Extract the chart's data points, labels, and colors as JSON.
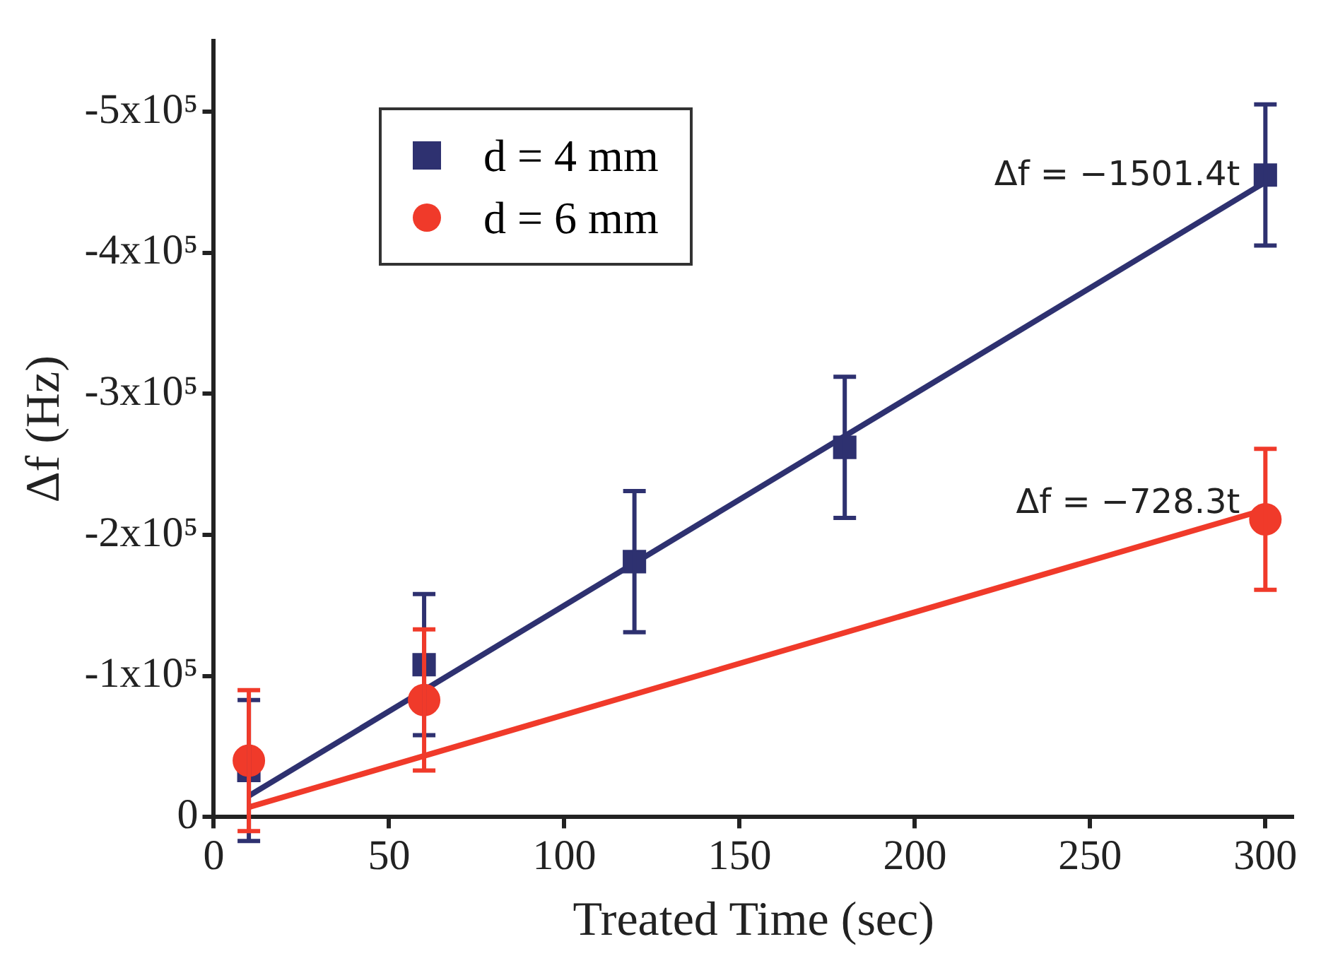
{
  "chart_data": {
    "type": "scatter",
    "xlabel": "Treated Time (sec)",
    "ylabel": "Δf (Hz)",
    "xlim": [
      0,
      308
    ],
    "xticks": [
      0,
      50,
      100,
      150,
      200,
      250,
      300
    ],
    "ylim": [
      0,
      -550000
    ],
    "yticks": [
      {
        "value": 0,
        "label": "0"
      },
      {
        "value": -100000,
        "label": "-1x10⁵"
      },
      {
        "value": -200000,
        "label": "-2x10⁵"
      },
      {
        "value": -300000,
        "label": "-3x10⁵"
      },
      {
        "value": -400000,
        "label": "-4x10⁵"
      },
      {
        "value": -500000,
        "label": "-5x10⁵"
      }
    ],
    "grid": false,
    "legend": "top left",
    "series": [
      {
        "name": "d = 4 mm",
        "type": "scatter",
        "marker": "square",
        "color": "#2e3170",
        "x": [
          10,
          60,
          120,
          180,
          300
        ],
        "values": [
          -33000,
          -108000,
          -181000,
          -262000,
          -455000
        ],
        "errors": [
          50000,
          50000,
          50000,
          50000,
          50000
        ]
      },
      {
        "name": "d = 6 mm",
        "type": "scatter",
        "marker": "circle",
        "color": "#f03a2a",
        "x": [
          10,
          60,
          300
        ],
        "values": [
          -40000,
          -83000,
          -211000
        ],
        "errors": [
          50000,
          50000,
          50000
        ]
      },
      {
        "type": "line",
        "marker": "none",
        "line_style": "solid",
        "color": "#2e3170",
        "x": [
          10,
          300
        ],
        "values": [
          -15000,
          -450000
        ]
      },
      {
        "type": "line",
        "marker": "none",
        "line_style": "solid",
        "color": "#f03a2a",
        "x": [
          10,
          300
        ],
        "values": [
          -7000,
          -218000
        ]
      }
    ],
    "annotations": [
      "Δf = −1501.4t",
      "Δf = −728.3t"
    ]
  }
}
